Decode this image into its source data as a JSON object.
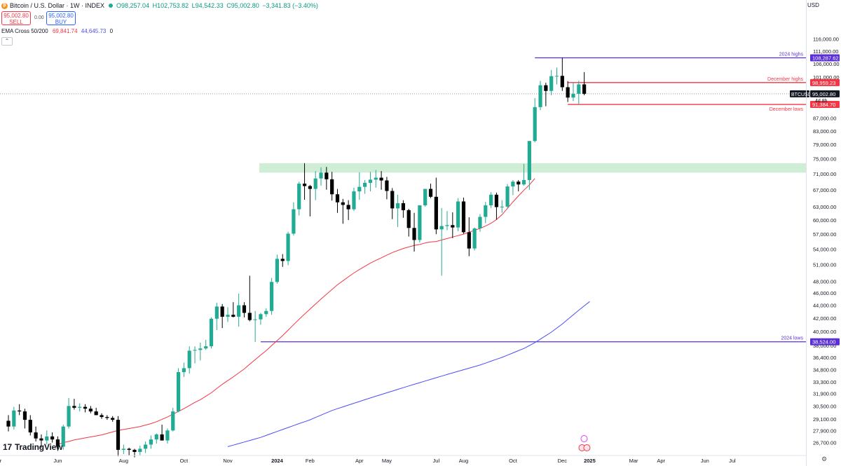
{
  "header": {
    "title": "Bitcoin / U.S. Dollar · 1W · INDEX",
    "ohlc": {
      "o": "O98,257.04",
      "h": "H102,753.82",
      "l": "L94,542.33",
      "c": "C95,002.80",
      "chg": "−3,341.83 (−3.40%)"
    },
    "sell_price": "95,002.80",
    "sell_label": "SELL",
    "spread": "0.00",
    "buy_price": "95,002.80",
    "buy_label": "BUY",
    "ema_label": "EMA Cross 50/200",
    "ema_fast": "69,841.74",
    "ema_slow": "44,645.73",
    "ema_extra": "0",
    "currency": "USD",
    "logo_text": "TradingView"
  },
  "colors": {
    "up": "#22ab94",
    "down": "#000000",
    "ema_fast": "#f23645",
    "ema_slow": "#4a4ef7",
    "line_purple": "#5b2fd6",
    "line_red": "#f23645",
    "zone": "#c8ebcf",
    "axis": "#131722"
  },
  "chart_data": {
    "type": "candlestick",
    "symbol": "BTCUSD",
    "timeframe": "1W",
    "y_scale": "log",
    "ylim": [
      25600,
      127000
    ],
    "yticks": [
      116000,
      111000,
      106000,
      101000,
      95000,
      91000,
      87000,
      83000,
      79000,
      75000,
      71000,
      67000,
      63000,
      60000,
      57000,
      54000,
      51000,
      48000,
      46000,
      44000,
      42000,
      40000,
      38000,
      36400,
      34800,
      33300,
      31900,
      30500,
      29100,
      27900,
      26700
    ],
    "x_labels": [
      {
        "label": "Apr",
        "week": -2
      },
      {
        "label": "Jun",
        "week": 9
      },
      {
        "label": "Aug",
        "week": 21
      },
      {
        "label": "Oct",
        "week": 32
      },
      {
        "label": "Nov",
        "week": 40
      },
      {
        "label": "2024",
        "week": 49
      },
      {
        "label": "Feb",
        "week": 55
      },
      {
        "label": "Apr",
        "week": 64
      },
      {
        "label": "May",
        "week": 69
      },
      {
        "label": "Jul",
        "week": 78
      },
      {
        "label": "Aug",
        "week": 83
      },
      {
        "label": "Oct",
        "week": 92
      },
      {
        "label": "Dec",
        "week": 101
      },
      {
        "label": "2025",
        "week": 106
      },
      {
        "label": "Mar",
        "week": 114
      },
      {
        "label": "Apr",
        "week": 119
      },
      {
        "label": "Jun",
        "week": 127
      },
      {
        "label": "Jul",
        "week": 132
      }
    ],
    "candles": [
      [
        28900,
        29500,
        27800,
        28300
      ],
      [
        28300,
        30400,
        28000,
        30000
      ],
      [
        30000,
        30700,
        29500,
        29900
      ],
      [
        29900,
        30200,
        28100,
        29000
      ],
      [
        29000,
        29500,
        27400,
        27700
      ],
      [
        27700,
        28300,
        26800,
        27100
      ],
      [
        27100,
        27500,
        26200,
        26900
      ],
      [
        26900,
        27900,
        26500,
        27300
      ],
      [
        27300,
        27700,
        26700,
        27000
      ],
      [
        27000,
        27300,
        25900,
        26300
      ],
      [
        26300,
        28500,
        26000,
        28300
      ],
      [
        28300,
        31400,
        28100,
        30500
      ],
      [
        30500,
        31300,
        30100,
        30300
      ],
      [
        30300,
        30800,
        29900,
        30400
      ],
      [
        30400,
        30700,
        29800,
        30200
      ],
      [
        30200,
        30500,
        29700,
        29900
      ],
      [
        29900,
        30300,
        29500,
        29500
      ],
      [
        29500,
        29700,
        29100,
        29300
      ],
      [
        29300,
        29500,
        29000,
        29200
      ],
      [
        29200,
        29400,
        28800,
        29000
      ],
      [
        29000,
        29400,
        25400,
        26000
      ],
      [
        26000,
        26500,
        25600,
        26100
      ],
      [
        26100,
        26200,
        25500,
        26000
      ],
      [
        26000,
        26100,
        25300,
        25800
      ],
      [
        25800,
        26400,
        25500,
        26100
      ],
      [
        26100,
        26800,
        25700,
        26500
      ],
      [
        26500,
        27400,
        26100,
        27000
      ],
      [
        27000,
        27600,
        26600,
        27500
      ],
      [
        27500,
        28500,
        26900,
        26900
      ],
      [
        26900,
        28100,
        26600,
        27900
      ],
      [
        27900,
        30300,
        27800,
        29900
      ],
      [
        29900,
        35000,
        29800,
        34500
      ],
      [
        34500,
        35700,
        33900,
        35000
      ],
      [
        35000,
        37900,
        34300,
        37300
      ],
      [
        37300,
        37900,
        35600,
        37400
      ],
      [
        37400,
        38400,
        36000,
        37600
      ],
      [
        37600,
        38800,
        37400,
        37900
      ],
      [
        37900,
        42100,
        37600,
        41900
      ],
      [
        41900,
        44400,
        40200,
        43800
      ],
      [
        43800,
        44200,
        40500,
        42200
      ],
      [
        42200,
        43700,
        41400,
        42500
      ],
      [
        42500,
        44500,
        42100,
        42200
      ],
      [
        42200,
        45900,
        40700,
        44000
      ],
      [
        44000,
        44500,
        42100,
        42800
      ],
      [
        42800,
        49000,
        41500,
        41700
      ],
      [
        41700,
        43100,
        38500,
        41800
      ],
      [
        41800,
        42800,
        41000,
        42600
      ],
      [
        42600,
        43500,
        42200,
        43100
      ],
      [
        43100,
        48600,
        42500,
        47900
      ],
      [
        47900,
        52900,
        47600,
        52100
      ],
      [
        52100,
        53000,
        50600,
        51700
      ],
      [
        51700,
        57500,
        50900,
        57100
      ],
      [
        57100,
        64000,
        56700,
        62400
      ],
      [
        62400,
        69000,
        61000,
        68500
      ],
      [
        68500,
        73800,
        64600,
        67900
      ],
      [
        67900,
        68200,
        60800,
        67200
      ],
      [
        67200,
        71700,
        64500,
        69800
      ],
      [
        69800,
        72700,
        68000,
        71300
      ],
      [
        71300,
        72800,
        67000,
        69600
      ],
      [
        69600,
        71500,
        64400,
        65900
      ],
      [
        65900,
        67200,
        61600,
        64000
      ],
      [
        64000,
        64800,
        59200,
        63400
      ],
      [
        63400,
        64500,
        60000,
        62400
      ],
      [
        62400,
        67500,
        62000,
        66600
      ],
      [
        66600,
        71400,
        64600,
        67700
      ],
      [
        67700,
        69400,
        66000,
        68700
      ],
      [
        68700,
        71500,
        66600,
        69500
      ],
      [
        69500,
        72000,
        67500,
        70000
      ],
      [
        70000,
        71700,
        67000,
        69300
      ],
      [
        69300,
        70200,
        64700,
        66700
      ],
      [
        66700,
        67400,
        60200,
        62600
      ],
      [
        62600,
        65800,
        58500,
        63800
      ],
      [
        63800,
        64500,
        60500,
        62200
      ],
      [
        62200,
        62500,
        56500,
        58300
      ],
      [
        58300,
        61600,
        53500,
        55800
      ],
      [
        55800,
        63300,
        55300,
        63300
      ],
      [
        63300,
        67200,
        63000,
        67200
      ],
      [
        67200,
        68500,
        65000,
        65300
      ],
      [
        65300,
        70000,
        57000,
        58000
      ],
      [
        58000,
        62700,
        49000,
        58700
      ],
      [
        58700,
        62000,
        57800,
        58900
      ],
      [
        58900,
        61700,
        56200,
        58400
      ],
      [
        58400,
        65000,
        57600,
        64200
      ],
      [
        64200,
        65100,
        57100,
        57400
      ],
      [
        57400,
        60600,
        52600,
        54100
      ],
      [
        54100,
        58400,
        53700,
        58200
      ],
      [
        58200,
        61300,
        57500,
        60700
      ],
      [
        60700,
        64100,
        59300,
        63300
      ],
      [
        63300,
        66400,
        62700,
        65800
      ],
      [
        65800,
        66300,
        60100,
        62900
      ],
      [
        62900,
        64500,
        61600,
        63000
      ],
      [
        63000,
        68400,
        62600,
        67800
      ],
      [
        67800,
        69400,
        65700,
        69000
      ],
      [
        69000,
        69400,
        66600,
        68300
      ],
      [
        68300,
        73600,
        68000,
        69400
      ],
      [
        69400,
        80000,
        67000,
        80000
      ],
      [
        80000,
        93500,
        79600,
        90500
      ],
      [
        90500,
        99600,
        89500,
        98000
      ],
      [
        98000,
        98900,
        90800,
        96000
      ],
      [
        96000,
        103600,
        94500,
        101300
      ],
      [
        101300,
        104500,
        98300,
        101400
      ],
      [
        101400,
        108300,
        96000,
        97300
      ],
      [
        97300,
        99500,
        92200,
        93700
      ],
      [
        93700,
        99000,
        92500,
        95000
      ],
      [
        95000,
        99600,
        91400,
        98300
      ],
      [
        98300,
        102800,
        94500,
        95000
      ]
    ],
    "ema_fast_label": "EMA 50",
    "ema_fast_from_week": 9,
    "ema_fast": [
      26500,
      26700,
      26800,
      26950,
      27050,
      27150,
      27250,
      27350,
      27450,
      27600,
      27750,
      27900,
      28000,
      28100,
      28200,
      28300,
      28450,
      28600,
      28800,
      29050,
      29300,
      29600,
      29900,
      30200,
      30550,
      30900,
      31200,
      31600,
      32000,
      32500,
      33000,
      33450,
      33900,
      34400,
      34900,
      35500,
      36100,
      36700,
      37300,
      38000,
      38700,
      39400,
      40200,
      41000,
      41800,
      42600,
      43400,
      44200,
      45000,
      45800,
      46600,
      47400,
      48100,
      48800,
      49500,
      50100,
      50700,
      51300,
      51800,
      52300,
      52800,
      53300,
      53700,
      54100,
      54400,
      54700,
      54900,
      55200,
      55400,
      55500,
      55800,
      56100,
      56400,
      56700,
      57000,
      57400,
      57800,
      58200,
      58700,
      59300,
      60100,
      61200,
      62600,
      64100,
      65500,
      66900,
      68200,
      69800
    ],
    "ema_slow_label": "EMA 200",
    "ema_slow_from_week": 40,
    "ema_slow": [
      26300,
      26450,
      26600,
      26750,
      26900,
      27050,
      27200,
      27400,
      27600,
      27800,
      28000,
      28200,
      28400,
      28600,
      28800,
      29000,
      29250,
      29500,
      29750,
      30000,
      30200,
      30400,
      30600,
      30800,
      31000,
      31200,
      31400,
      31600,
      31800,
      32000,
      32200,
      32400,
      32600,
      32800,
      33000,
      33200,
      33400,
      33600,
      33800,
      34000,
      34200,
      34400,
      34600,
      34800,
      35000,
      35200,
      35400,
      35650,
      35900,
      36150,
      36400,
      36700,
      37000,
      37300,
      37600,
      38000,
      38400,
      38900,
      39400,
      39900,
      40500,
      41100,
      41800,
      42500,
      43200,
      43900,
      44600
    ],
    "levels": [
      {
        "name": "2024 highs",
        "value": 108287.62,
        "label": "108,287.62",
        "from_week": 96,
        "color": "#5b2fd6"
      },
      {
        "name": "December highs",
        "value": 98959.23,
        "label": "98,959.23",
        "from_week": 102,
        "color": "#f23645"
      },
      {
        "name": "December lows",
        "value": 91384.7,
        "label": "91,384.70",
        "from_week": 102,
        "color": "#f23645"
      },
      {
        "name": "2024 lows",
        "value": 38524.0,
        "label": "38,524.00",
        "from_week": 46,
        "color": "#5b2fd6"
      }
    ],
    "zone": {
      "low": 71300,
      "high": 73800,
      "from_week": 46
    },
    "last_price": {
      "value": 95002.8,
      "label": "95,002.80",
      "symbol": "BTCUSD",
      "countdown": "4d 8h"
    }
  }
}
